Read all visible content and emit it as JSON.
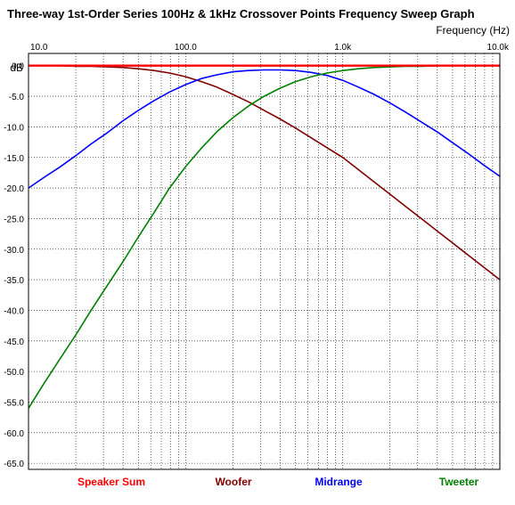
{
  "chart_data": {
    "type": "line",
    "title": "Three-way 1st-Order Series 100Hz & 1kHz Crossover Points Frequency Sweep Graph",
    "xlabel": "Frequency  (Hz)",
    "ylabel": "dB",
    "x_scale": "log",
    "xlim": [
      10,
      10000
    ],
    "ylim": [
      -66,
      2
    ],
    "grid": true,
    "legend_position": "bottom",
    "x_tick_labels": [
      "10.0",
      "100.0",
      "1.0k",
      "10.0k"
    ],
    "x_tick_values": [
      10,
      100,
      1000,
      10000
    ],
    "y_tick_values": [
      0,
      -5,
      -10,
      -15,
      -20,
      -25,
      -30,
      -35,
      -40,
      -45,
      -50,
      -55,
      -60,
      -65
    ],
    "y_tick_labels": [
      "0.0",
      "-5.0",
      "-10.0",
      "-15.0",
      "-20.0",
      "-25.0",
      "-30.0",
      "-35.0",
      "-40.0",
      "-45.0",
      "-50.0",
      "-55.0",
      "-60.0",
      "-65.0"
    ],
    "x": [
      10,
      12.5,
      15.8,
      20,
      25,
      31.6,
      40,
      50,
      63,
      79,
      100,
      126,
      158,
      200,
      251,
      316,
      398,
      501,
      631,
      794,
      1000,
      1259,
      1585,
      1995,
      2512,
      3162,
      3981,
      5012,
      6310,
      7943,
      10000
    ],
    "series": [
      {
        "name": "Speaker Sum",
        "color": "#ff0000",
        "values": [
          0,
          0,
          0,
          0,
          0,
          0,
          0,
          0,
          0,
          0,
          0,
          0,
          0,
          0,
          0,
          0,
          0,
          0,
          0,
          0,
          0,
          0,
          0,
          0,
          0,
          0,
          0,
          0,
          0,
          0,
          0
        ]
      },
      {
        "name": "Woofer",
        "color": "#800000",
        "values": [
          0.0,
          0.0,
          0.0,
          -0.1,
          -0.1,
          -0.2,
          -0.3,
          -0.5,
          -0.8,
          -1.2,
          -1.8,
          -2.6,
          -3.5,
          -4.7,
          -5.9,
          -7.3,
          -8.7,
          -10.2,
          -11.8,
          -13.4,
          -15.0,
          -17.0,
          -19.0,
          -21.0,
          -23.0,
          -25.0,
          -27.0,
          -29.0,
          -31.0,
          -33.0,
          -35.0
        ]
      },
      {
        "name": "Midrange",
        "color": "#0000ff",
        "values": [
          -20.0,
          -18.3,
          -16.6,
          -14.7,
          -12.8,
          -11.0,
          -9.0,
          -7.3,
          -5.7,
          -4.3,
          -3.1,
          -2.1,
          -1.5,
          -1.0,
          -0.8,
          -0.7,
          -0.7,
          -0.8,
          -1.1,
          -1.6,
          -2.4,
          -3.5,
          -4.7,
          -6.1,
          -7.6,
          -9.2,
          -10.8,
          -12.6,
          -14.4,
          -16.3,
          -18.1
        ]
      },
      {
        "name": "Tweeter",
        "color": "#008000",
        "values": [
          -56.0,
          -52.0,
          -48.0,
          -44.0,
          -40.0,
          -36.0,
          -32.0,
          -28.0,
          -24.0,
          -20.0,
          -16.5,
          -13.5,
          -10.8,
          -8.5,
          -6.6,
          -5.0,
          -3.7,
          -2.6,
          -1.8,
          -1.2,
          -0.8,
          -0.5,
          -0.3,
          -0.2,
          -0.1,
          -0.1,
          0.0,
          0.0,
          0.0,
          0.0,
          0.0
        ]
      }
    ]
  }
}
